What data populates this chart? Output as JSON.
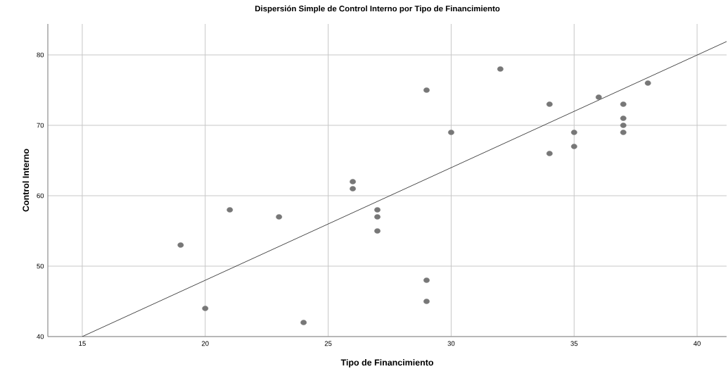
{
  "chart_data": {
    "type": "scatter",
    "title": "Dispersión Simple de Control Interno por Tipo de Financimiento",
    "xlabel": "Tipo de Financimiento",
    "ylabel": "Control Interno",
    "xlim": [
      13.6,
      41.2
    ],
    "ylim": [
      40,
      84.4
    ],
    "xticks": [
      15,
      20,
      25,
      30,
      35,
      40
    ],
    "yticks": [
      40,
      50,
      60,
      70,
      80
    ],
    "grid": true,
    "series": [
      {
        "color": "#777777",
        "marker": "circle",
        "x": [
          19,
          20,
          21,
          23,
          24,
          26,
          26,
          27,
          27,
          27,
          29,
          29,
          29,
          30,
          32,
          34,
          34,
          35,
          35,
          36,
          37,
          37,
          37,
          37,
          38
        ],
        "values": [
          53,
          44,
          58,
          57,
          42,
          62,
          61,
          58,
          57,
          55,
          75,
          48,
          45,
          69,
          78,
          73,
          66,
          69,
          67,
          74,
          73,
          71,
          70,
          69,
          76
        ]
      },
      {
        "type": "line",
        "color": "#333333",
        "marker": "none",
        "line_style": "solid",
        "x": [
          15,
          41.2
        ],
        "values": [
          40,
          81.9
        ]
      }
    ]
  }
}
